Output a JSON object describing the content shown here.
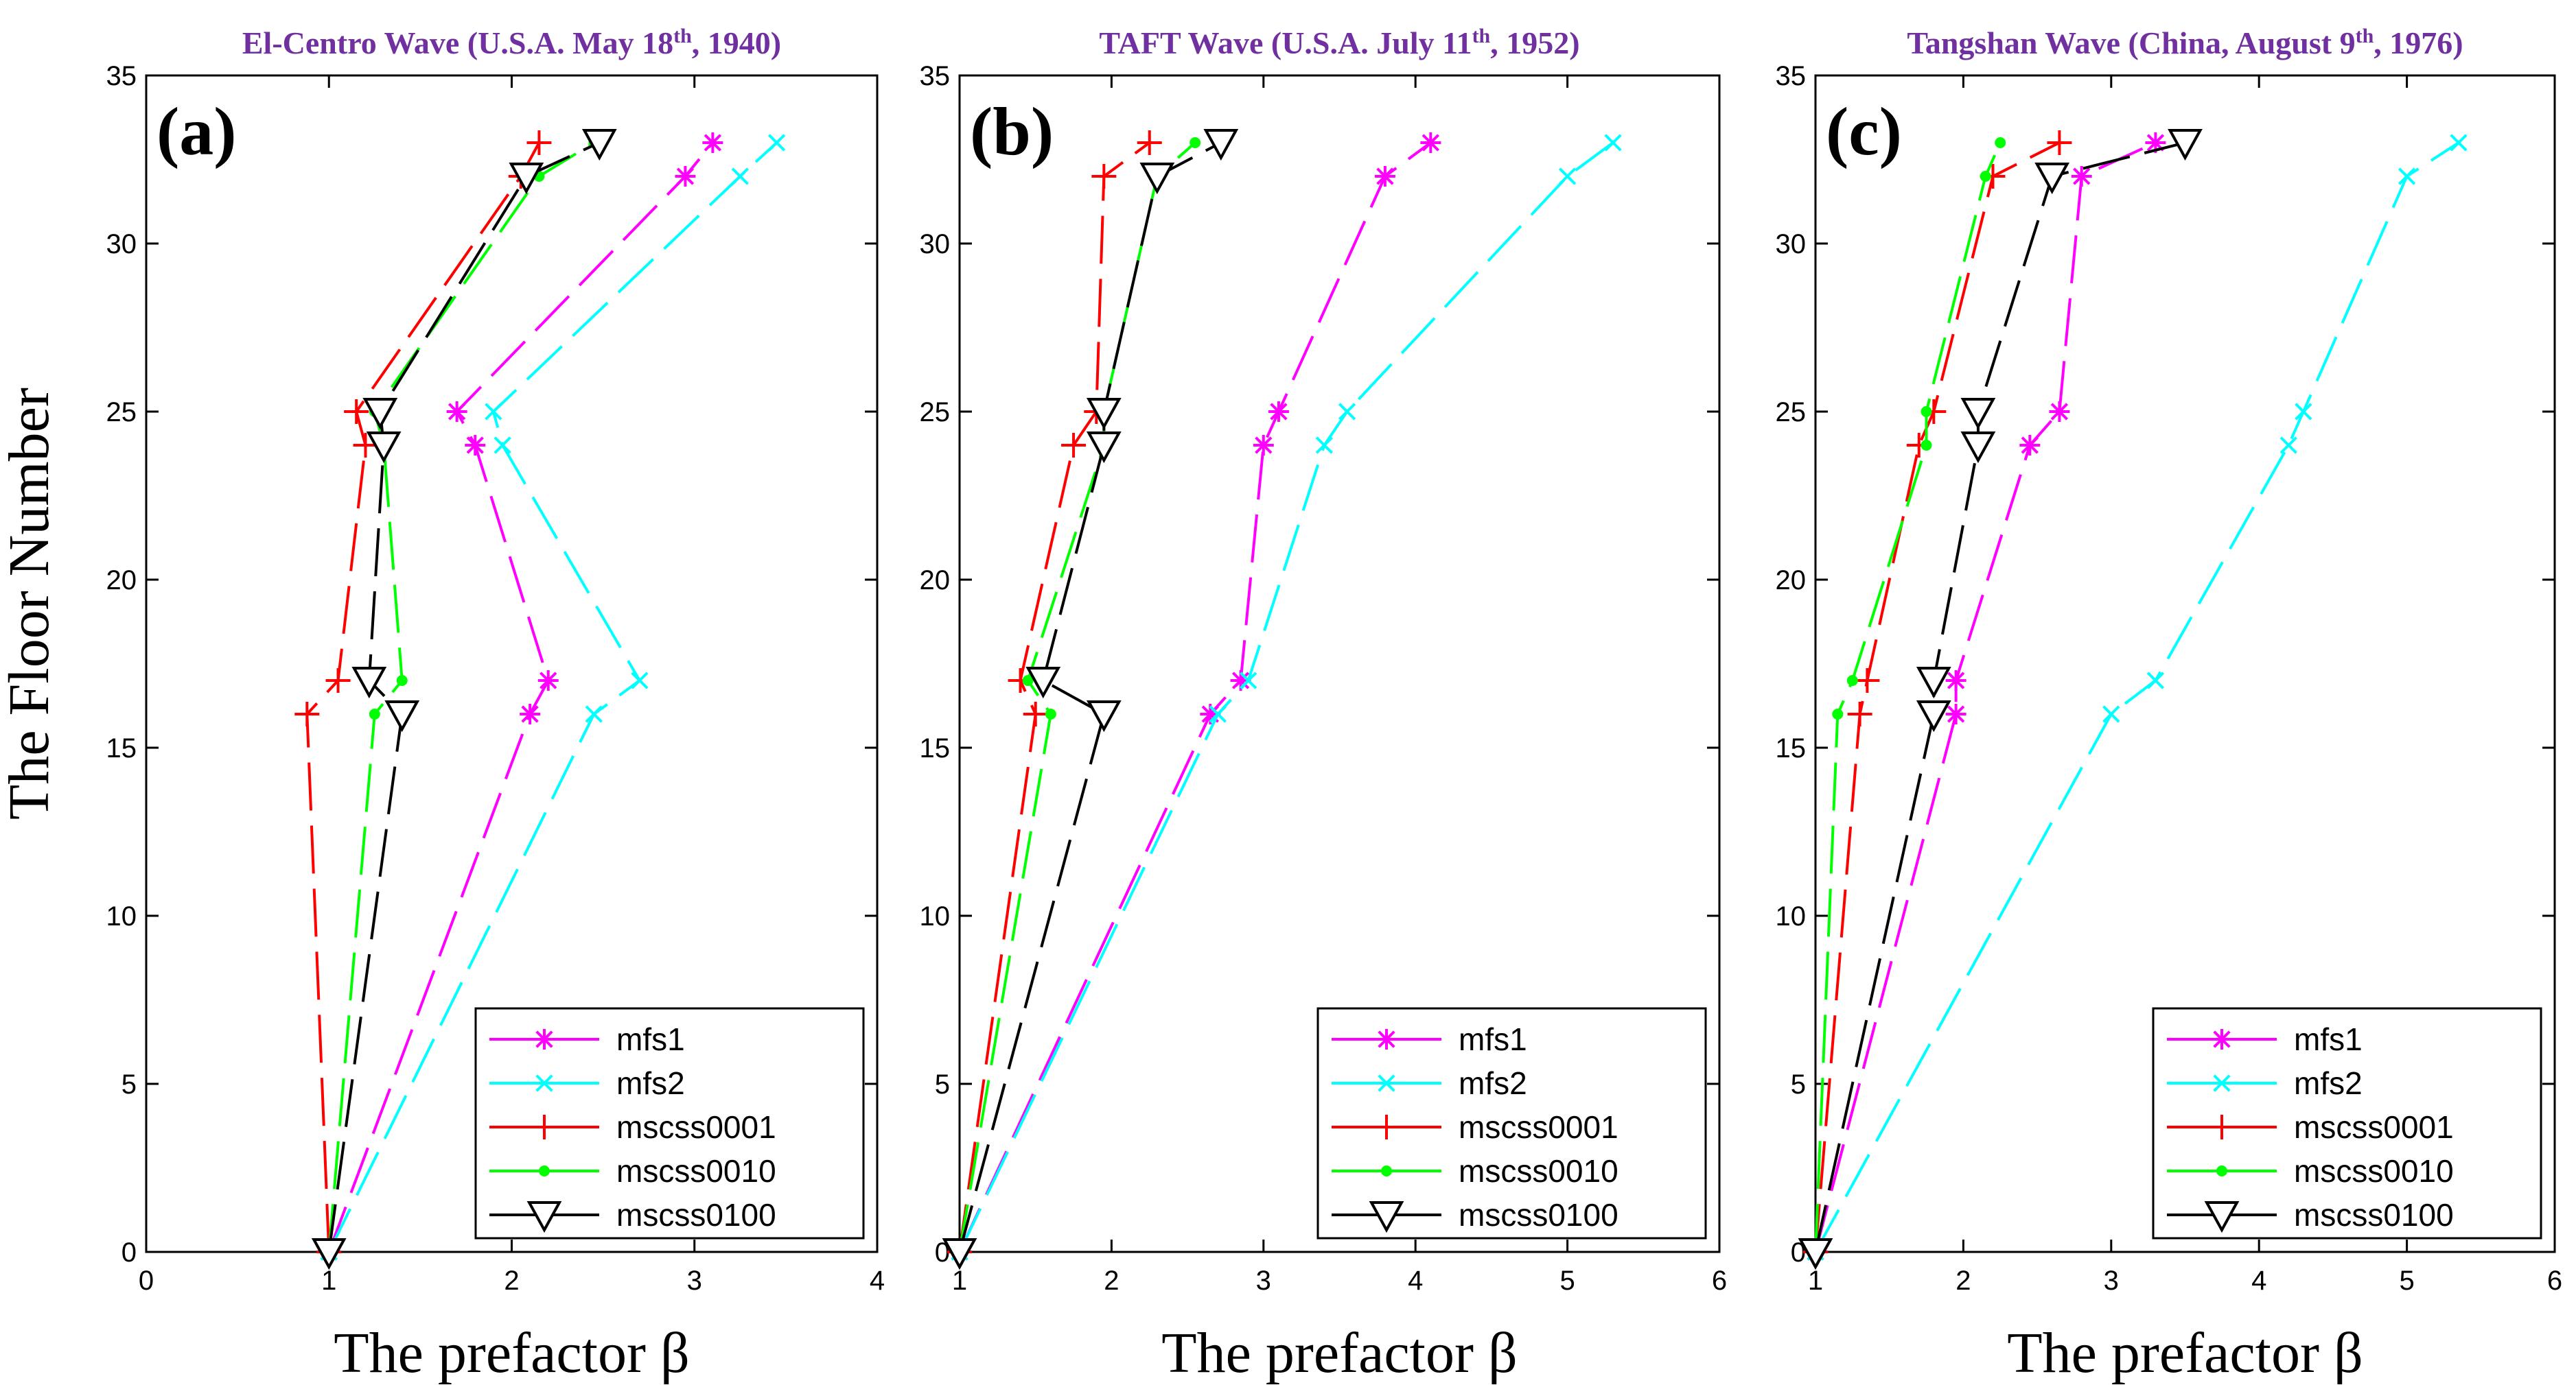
{
  "figure": {
    "ylabel": "The Floor Number",
    "xlabel": "The prefactor β"
  },
  "series_style": {
    "mfs1": {
      "color": "#ff00ff",
      "marker": "star"
    },
    "mfs2": {
      "color": "#00ffff",
      "marker": "x"
    },
    "mscss0001": {
      "color": "#ff0000",
      "marker": "plus"
    },
    "mscss0010": {
      "color": "#00ff00",
      "marker": "dot"
    },
    "mscss0100": {
      "color": "#000000",
      "marker": "triangle-down"
    }
  },
  "chart_data": [
    {
      "type": "line",
      "panel_label": "(a)",
      "title": "El-Centro Wave (U.S.A. May 18",
      "title_sup": "th",
      "title_end": ", 1940)",
      "xlim": [
        0,
        4
      ],
      "ylim": [
        0,
        35
      ],
      "xticks": [
        0,
        1,
        2,
        3,
        4
      ],
      "yticks": [
        0,
        5,
        10,
        15,
        20,
        25,
        30,
        35
      ],
      "xlabel": "The prefactor β",
      "ylabel": "The Floor Number",
      "legend_position": "bottom-right",
      "series": [
        {
          "name": "mfs1",
          "x": [
            1.0,
            2.1,
            2.2,
            1.8,
            1.7,
            2.95,
            3.1
          ],
          "y": [
            0,
            16,
            17,
            24,
            25,
            32,
            33
          ]
        },
        {
          "name": "mfs2",
          "x": [
            1.0,
            2.45,
            2.7,
            1.95,
            1.9,
            3.25,
            3.45
          ],
          "y": [
            0,
            16,
            17,
            24,
            25,
            32,
            33
          ]
        },
        {
          "name": "mscss0001",
          "x": [
            1.0,
            0.88,
            1.05,
            1.2,
            1.15,
            2.05,
            2.15
          ],
          "y": [
            0,
            16,
            17,
            24,
            25,
            32,
            33
          ]
        },
        {
          "name": "mscss0010",
          "x": [
            1.0,
            1.25,
            1.4,
            1.3,
            1.25,
            2.15,
            2.45
          ],
          "y": [
            0,
            16,
            17,
            24,
            25,
            32,
            33
          ]
        },
        {
          "name": "mscss0100",
          "x": [
            1.0,
            1.4,
            1.22,
            1.3,
            1.28,
            2.08,
            2.48
          ],
          "y": [
            0,
            16,
            17,
            24,
            25,
            32,
            33
          ]
        }
      ]
    },
    {
      "type": "line",
      "panel_label": "(b)",
      "title": "TAFT Wave (U.S.A. July 11",
      "title_sup": "th",
      "title_end": ", 1952)",
      "xlim": [
        1,
        6
      ],
      "ylim": [
        0,
        35
      ],
      "xticks": [
        1,
        2,
        3,
        4,
        5,
        6
      ],
      "yticks": [
        0,
        5,
        10,
        15,
        20,
        25,
        30,
        35
      ],
      "xlabel": "The prefactor β",
      "ylabel": "",
      "legend_position": "bottom-right",
      "series": [
        {
          "name": "mfs1",
          "x": [
            1.0,
            2.65,
            2.85,
            3.0,
            3.1,
            3.8,
            4.1
          ],
          "y": [
            0,
            16,
            17,
            24,
            25,
            32,
            33
          ]
        },
        {
          "name": "mfs2",
          "x": [
            1.0,
            2.7,
            2.9,
            3.4,
            3.55,
            5.0,
            5.3
          ],
          "y": [
            0,
            16,
            17,
            24,
            25,
            32,
            33
          ]
        },
        {
          "name": "mscss0001",
          "x": [
            1.0,
            1.5,
            1.4,
            1.75,
            1.9,
            1.95,
            2.25
          ],
          "y": [
            0,
            16,
            17,
            24,
            25,
            32,
            33
          ]
        },
        {
          "name": "mscss0010",
          "x": [
            1.0,
            1.6,
            1.45,
            1.95,
            1.95,
            2.3,
            2.55
          ],
          "y": [
            0,
            16,
            17,
            24,
            25,
            32,
            33
          ]
        },
        {
          "name": "mscss0100",
          "x": [
            1.0,
            1.95,
            1.55,
            1.95,
            1.95,
            2.3,
            2.72
          ],
          "y": [
            0,
            16,
            17,
            24,
            25,
            32,
            33
          ]
        }
      ]
    },
    {
      "type": "line",
      "panel_label": "(c)",
      "title": "Tangshan Wave (China, August 9",
      "title_sup": "th",
      "title_end": ", 1976)",
      "xlim": [
        1,
        6
      ],
      "ylim": [
        0,
        35
      ],
      "xticks": [
        1,
        2,
        3,
        4,
        5,
        6
      ],
      "yticks": [
        0,
        5,
        10,
        15,
        20,
        25,
        30,
        35
      ],
      "xlabel": "The prefactor β",
      "ylabel": "",
      "legend_position": "bottom-right",
      "series": [
        {
          "name": "mfs1",
          "x": [
            1.0,
            1.95,
            1.95,
            2.45,
            2.65,
            2.8,
            3.3
          ],
          "y": [
            0,
            16,
            17,
            24,
            25,
            32,
            33
          ]
        },
        {
          "name": "mfs2",
          "x": [
            1.0,
            3.0,
            3.3,
            4.2,
            4.3,
            5.0,
            5.35
          ],
          "y": [
            0,
            16,
            17,
            24,
            25,
            32,
            33
          ]
        },
        {
          "name": "mscss0001",
          "x": [
            1.0,
            1.3,
            1.35,
            1.7,
            1.8,
            2.2,
            2.65
          ],
          "y": [
            0,
            16,
            17,
            24,
            25,
            32,
            33
          ]
        },
        {
          "name": "mscss0010",
          "x": [
            1.0,
            1.15,
            1.25,
            1.75,
            1.75,
            2.15,
            2.25
          ],
          "y": [
            0,
            16,
            17,
            24,
            25,
            32,
            33
          ]
        },
        {
          "name": "mscss0100",
          "x": [
            1.0,
            1.8,
            1.8,
            2.1,
            2.1,
            2.6,
            3.5
          ],
          "y": [
            0,
            16,
            17,
            24,
            25,
            32,
            33
          ]
        }
      ]
    }
  ]
}
